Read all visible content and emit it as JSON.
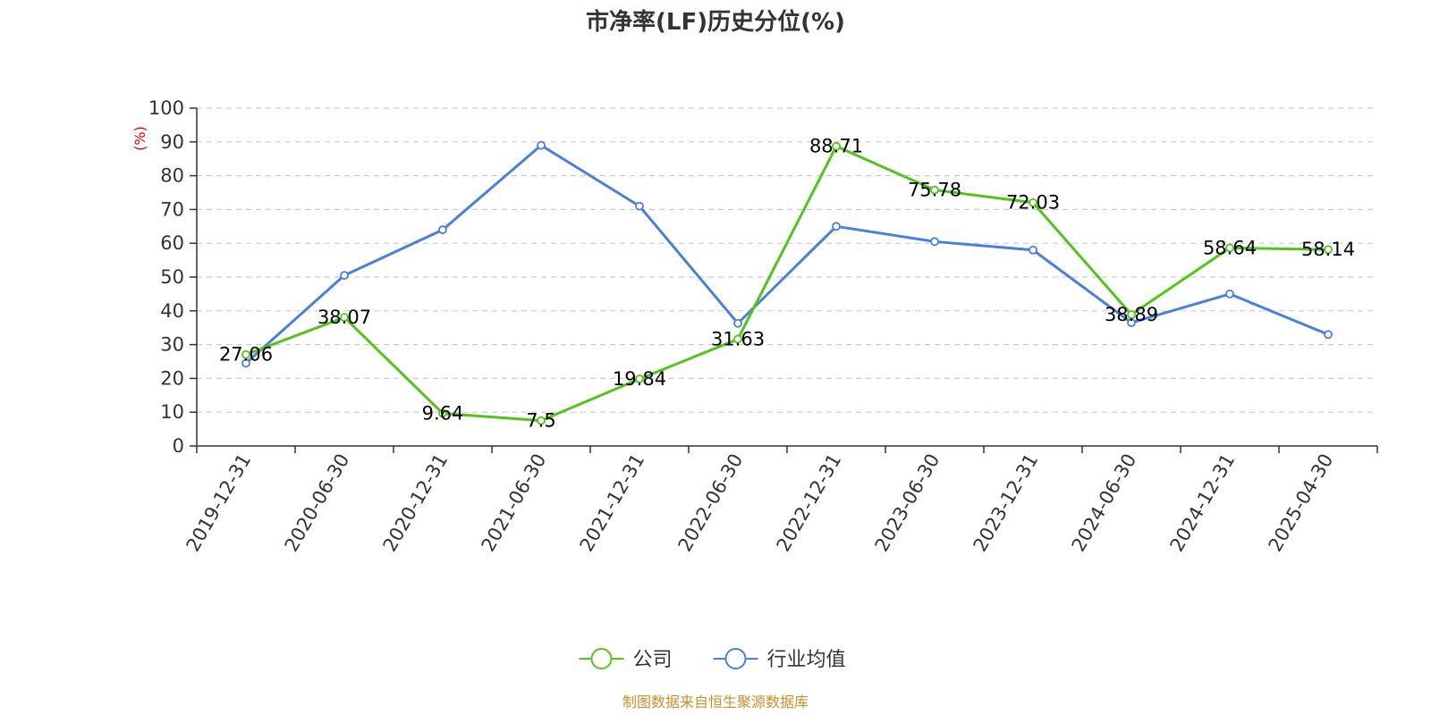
{
  "chart_data": {
    "type": "line",
    "title": "市净率(LF)历史分位(%)",
    "ylabel": "(%)",
    "ylim": [
      0,
      100
    ],
    "yticks": [
      0,
      10,
      20,
      30,
      40,
      50,
      60,
      70,
      80,
      90,
      100
    ],
    "grid": true,
    "legend_position": "bottom",
    "categories": [
      "2019-12-31",
      "2020-06-30",
      "2020-12-31",
      "2021-06-30",
      "2021-12-31",
      "2022-06-30",
      "2022-12-31",
      "2023-06-30",
      "2023-12-31",
      "2024-06-30",
      "2024-12-31",
      "2025-04-30"
    ],
    "series": [
      {
        "name": "公司",
        "color": "#52c41a",
        "values": [
          27.06,
          38.07,
          9.64,
          7.5,
          19.84,
          31.63,
          88.71,
          75.78,
          72.03,
          38.89,
          58.64,
          58.14
        ],
        "labels": [
          "27.06",
          "38.07",
          "9.64",
          "7.5",
          "19.84",
          "31.63",
          "88.71",
          "75.78",
          "72.03",
          "38.89",
          "58.64",
          "58.14"
        ]
      },
      {
        "name": "行业均值",
        "color": "#4a7fdc",
        "values": [
          24.5,
          50.5,
          64.0,
          89.0,
          71.0,
          36.3,
          65.0,
          60.5,
          58.0,
          36.5,
          45.0,
          33.0
        ]
      }
    ],
    "source": "制图数据来自恒生聚源数据库"
  },
  "colors": {
    "axis": "#333333",
    "grid": "#cccccc",
    "ylabel": "#e60000",
    "source": "#c8902a"
  }
}
